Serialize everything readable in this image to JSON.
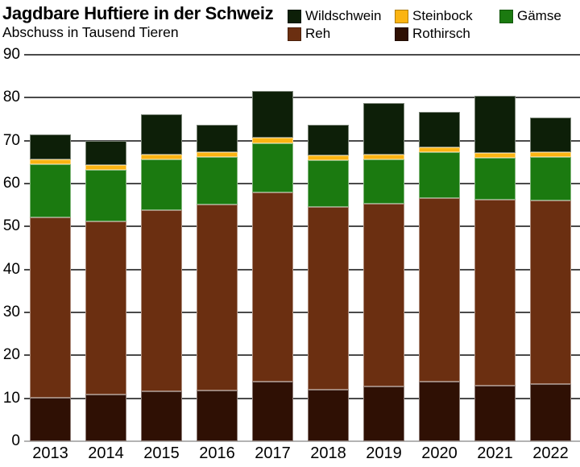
{
  "header": {
    "title": "Jagdbare Huftiere in der Schweiz",
    "subtitle": "Abschuss in Tausend Tieren"
  },
  "legend": {
    "position": "top-right",
    "items": [
      {
        "label": "Wildschwein",
        "color": "#0d1f08"
      },
      {
        "label": "Steinbock",
        "color": "#fbb412"
      },
      {
        "label": "Gämse",
        "color": "#1b7a10"
      },
      {
        "label": "Reh",
        "color": "#6b2f11"
      },
      {
        "label": "Rothirsch",
        "color": "#2f1004"
      }
    ]
  },
  "chart_data": {
    "type": "bar",
    "stacked": true,
    "title": "Jagdbare Huftiere in der Schweiz",
    "subtitle": "Abschuss in Tausend Tieren",
    "ylabel": "Abschuss in Tausend Tieren",
    "xlabel": "",
    "ylim": [
      0,
      90
    ],
    "y_ticks": [
      90,
      80,
      70,
      60,
      50,
      40,
      30,
      20,
      10,
      0
    ],
    "grid": true,
    "gridline_color": "#4a4a4a",
    "baseline_color": "#b3b3b3",
    "legend_position": "top-right",
    "categories": [
      "2013",
      "2014",
      "2015",
      "2016",
      "2017",
      "2018",
      "2019",
      "2020",
      "2021",
      "2022"
    ],
    "series": [
      {
        "name": "Rothirsch",
        "color": "#2f1004",
        "values": [
          10.1,
          10.9,
          11.7,
          11.8,
          13.8,
          12.0,
          12.7,
          13.8,
          12.9,
          13.4
        ]
      },
      {
        "name": "Reh",
        "color": "#6b2f11",
        "values": [
          42.0,
          40.3,
          42.1,
          43.3,
          44.1,
          42.5,
          42.6,
          42.8,
          43.4,
          42.7
        ]
      },
      {
        "name": "Gämse",
        "color": "#1b7a10",
        "values": [
          12.4,
          12.0,
          11.8,
          11.1,
          11.5,
          10.9,
          10.4,
          10.7,
          9.7,
          10.1
        ]
      },
      {
        "name": "Steinbock",
        "color": "#fbb412",
        "values": [
          1.1,
          1.1,
          1.1,
          1.1,
          1.2,
          1.1,
          1.1,
          1.1,
          1.1,
          1.1
        ]
      },
      {
        "name": "Wildschwein",
        "color": "#0d1f08",
        "values": [
          5.8,
          5.7,
          9.5,
          6.4,
          11.0,
          7.2,
          12.0,
          8.3,
          13.3,
          8.1
        ]
      }
    ],
    "totals": [
      71.4,
      70.0,
      76.2,
      73.7,
      81.6,
      73.7,
      78.8,
      76.7,
      80.4,
      75.4
    ]
  }
}
